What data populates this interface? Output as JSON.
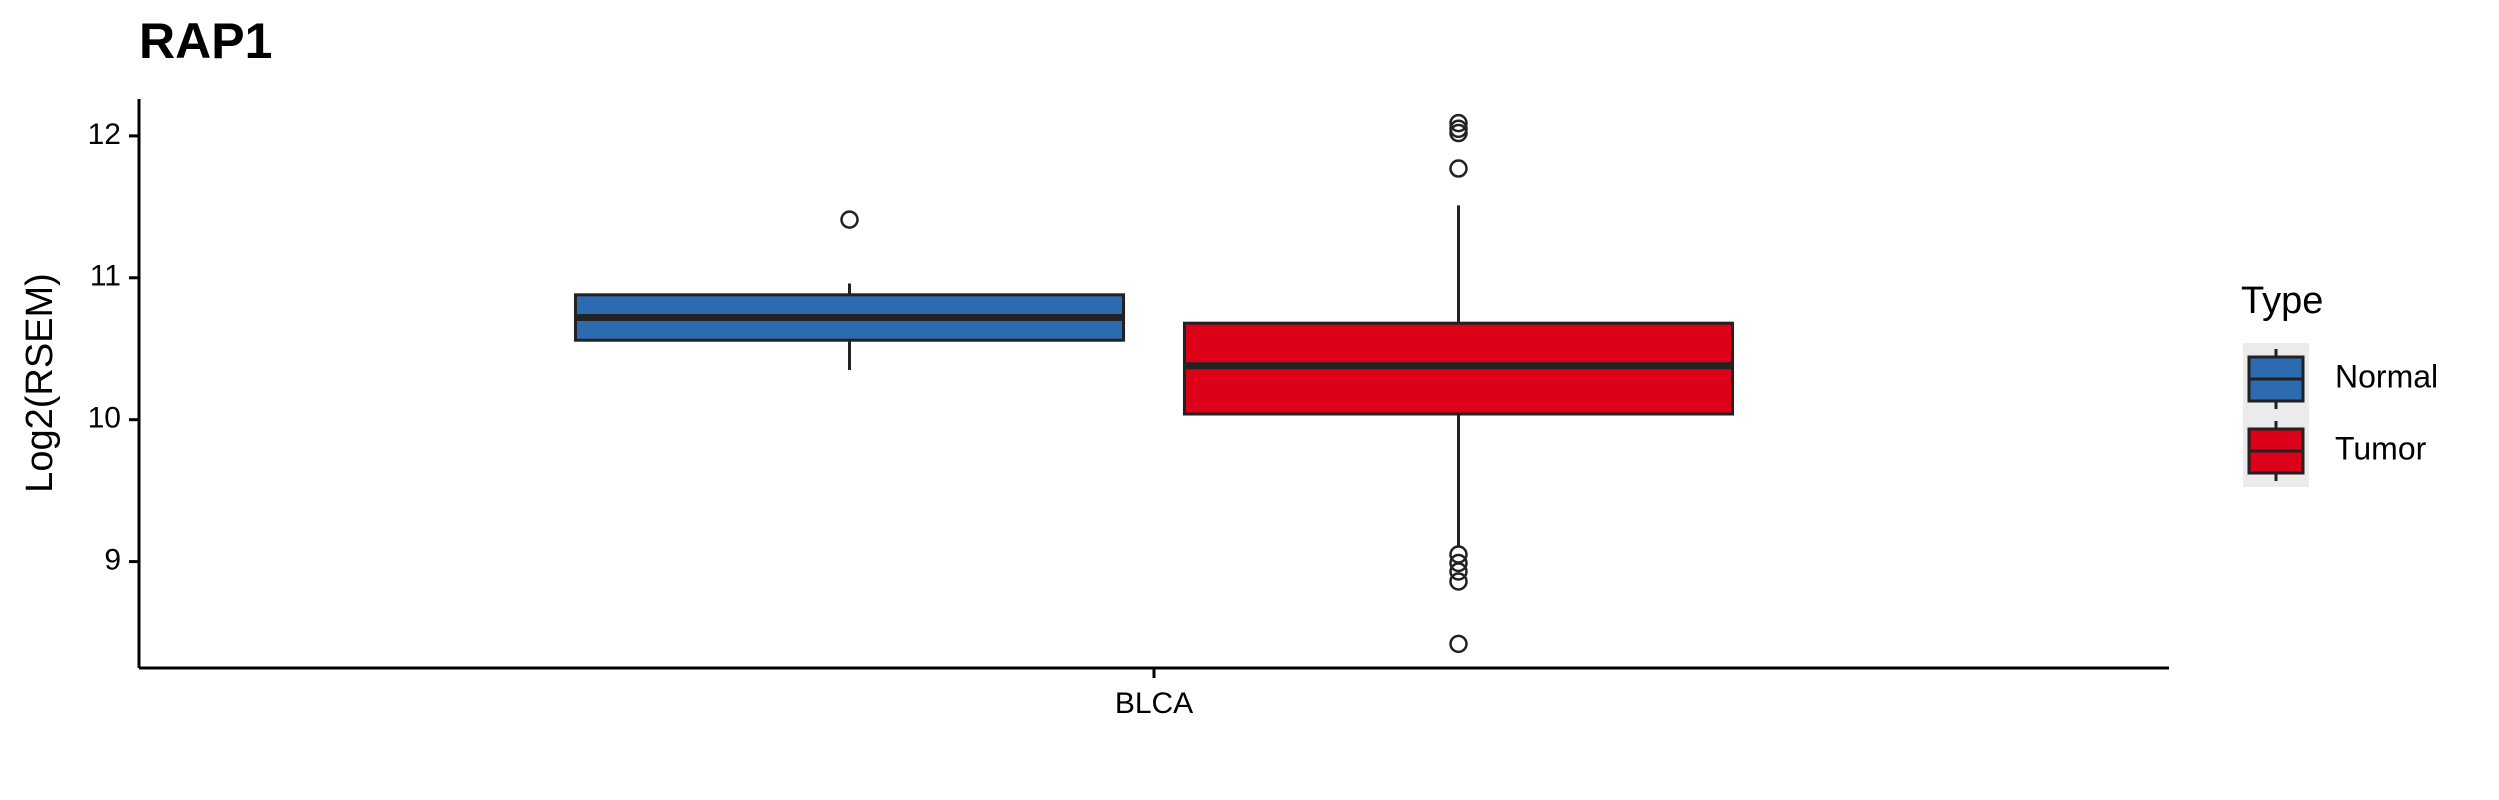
{
  "chart_data": {
    "type": "box",
    "title": "RAP1",
    "y_label": "Log2(RSEM)",
    "categories": [
      "BLCA"
    ],
    "legend_title": "Type",
    "ylim": [
      8.25,
      12.26
    ],
    "yticks": [
      9,
      10,
      11,
      12
    ],
    "series": [
      {
        "name": "Normal",
        "color": "#2c6bb0",
        "whisker_low": [
          10.35
        ],
        "q1": [
          10.56
        ],
        "median": [
          10.72
        ],
        "q3": [
          10.88
        ],
        "whisker_high": [
          10.96
        ],
        "outliers": [
          [
            11.41
          ]
        ]
      },
      {
        "name": "Tumor",
        "color": "#dc0019",
        "whisker_low": [
          9.1
        ],
        "q1": [
          10.04
        ],
        "median": [
          10.38
        ],
        "q3": [
          10.68
        ],
        "whisker_high": [
          11.51
        ],
        "outliers": [
          [
            12.09,
            12.05,
            12.02,
            11.77,
            9.05,
            8.99,
            8.93,
            8.86,
            8.42
          ]
        ]
      }
    ]
  }
}
